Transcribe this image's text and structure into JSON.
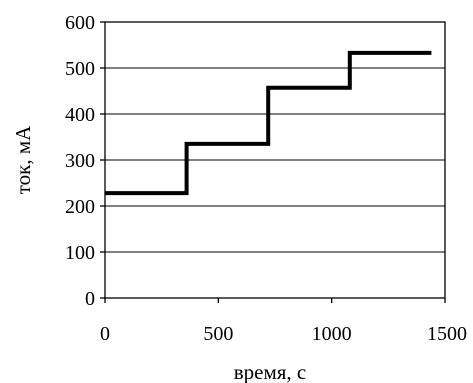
{
  "chart_data": {
    "type": "line",
    "title": "",
    "xlabel": "время, с",
    "ylabel": "ток, мА",
    "xlim": [
      0,
      1500
    ],
    "ylim": [
      0,
      600
    ],
    "x_ticks": [
      0,
      500,
      1000,
      1500
    ],
    "y_ticks": [
      0,
      100,
      200,
      300,
      400,
      500,
      600
    ],
    "grid": "horizontal",
    "legend": "none",
    "line_color": "#000000",
    "series": [
      {
        "step": "post",
        "x": [
          0,
          360,
          720,
          1080,
          1440
        ],
        "y": [
          228,
          335,
          457,
          533,
          533
        ]
      }
    ]
  }
}
